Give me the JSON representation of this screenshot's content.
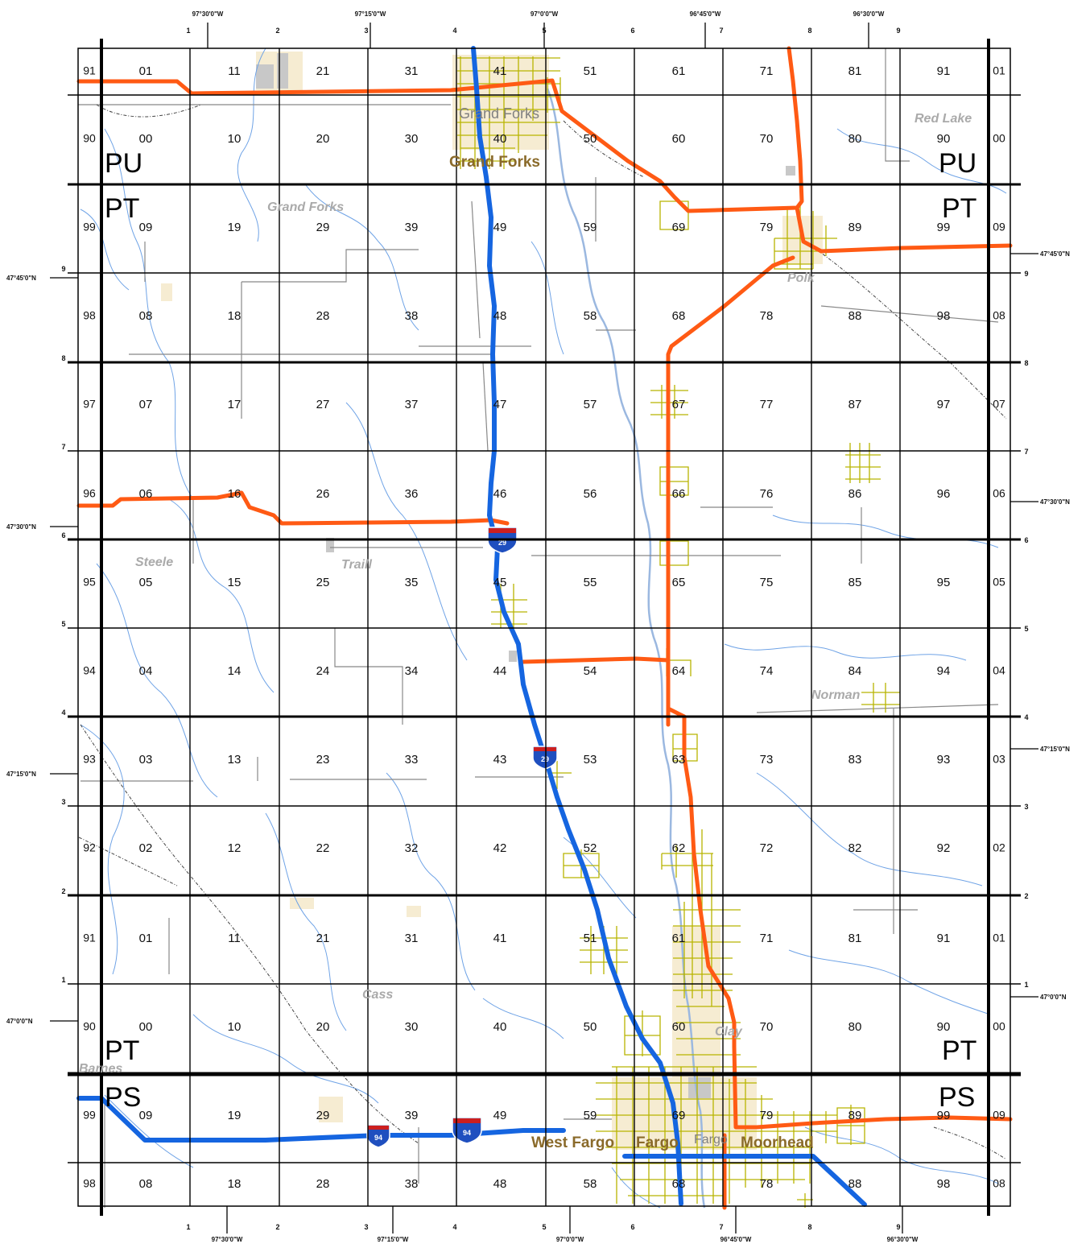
{
  "colors": {
    "grid": "#000000",
    "water": "#6fa3e6",
    "river": "#9bb8e0",
    "interstate": "#1565e0",
    "highway": "#ff5a14",
    "road": "#808080",
    "railroad": "#444444",
    "urban_grid": "#b8b400",
    "urban_fill": "#f6ecd2"
  },
  "top_coords": [
    {
      "label": "97°30'0\"W"
    },
    {
      "label": "97°15'0\"W"
    },
    {
      "label": "97°0'0\"W"
    },
    {
      "label": "96°45'0\"W"
    },
    {
      "label": "96°30'0\"W"
    }
  ],
  "bottom_coords": [
    {
      "label": "97°30'0\"W"
    },
    {
      "label": "97°15'0\"W"
    },
    {
      "label": "97°0'0\"W"
    },
    {
      "label": "96°45'0\"W"
    },
    {
      "label": "96°30'0\"W"
    }
  ],
  "left_coords": [
    {
      "label": "47°45'0\"N"
    },
    {
      "label": "47°30'0\"N"
    },
    {
      "label": "47°15'0\"N"
    },
    {
      "label": "47°0'0\"N"
    }
  ],
  "right_coords": [
    {
      "label": "47°45'0\"N"
    },
    {
      "label": "47°30'0\"N"
    },
    {
      "label": "47°15'0\"N"
    },
    {
      "label": "47°0'0\"N"
    }
  ],
  "top_index": [
    "1",
    "2",
    "3",
    "4",
    "5",
    "6",
    "7",
    "8",
    "9"
  ],
  "bottom_index": [
    "1",
    "2",
    "3",
    "4",
    "5",
    "6",
    "7",
    "8",
    "9"
  ],
  "left_index": [
    "9",
    "8",
    "7",
    "6",
    "5",
    "4",
    "3",
    "2",
    "1"
  ],
  "right_index": [
    "9",
    "8",
    "7",
    "6",
    "5",
    "4",
    "3",
    "2",
    "1"
  ],
  "grid_rows": [
    {
      "left": "91",
      "cells": [
        "01",
        "11",
        "21",
        "31",
        "41",
        "51",
        "61",
        "71",
        "81",
        "91"
      ],
      "right": "01"
    },
    {
      "left": "90",
      "cells": [
        "00",
        "10",
        "20",
        "30",
        "40",
        "50",
        "60",
        "70",
        "80",
        "90"
      ],
      "right": "00"
    },
    {
      "left": "99",
      "cells": [
        "09",
        "19",
        "29",
        "39",
        "49",
        "59",
        "69",
        "79",
        "89",
        "99"
      ],
      "right": "09"
    },
    {
      "left": "98",
      "cells": [
        "08",
        "18",
        "28",
        "38",
        "48",
        "58",
        "68",
        "78",
        "88",
        "98"
      ],
      "right": "08"
    },
    {
      "left": "97",
      "cells": [
        "07",
        "17",
        "27",
        "37",
        "47",
        "57",
        "67",
        "77",
        "87",
        "97"
      ],
      "right": "07"
    },
    {
      "left": "96",
      "cells": [
        "06",
        "16",
        "26",
        "36",
        "46",
        "56",
        "66",
        "76",
        "86",
        "96"
      ],
      "right": "06"
    },
    {
      "left": "95",
      "cells": [
        "05",
        "15",
        "25",
        "35",
        "45",
        "55",
        "65",
        "75",
        "85",
        "95"
      ],
      "right": "05"
    },
    {
      "left": "94",
      "cells": [
        "04",
        "14",
        "24",
        "34",
        "44",
        "54",
        "64",
        "74",
        "84",
        "94"
      ],
      "right": "04"
    },
    {
      "left": "93",
      "cells": [
        "03",
        "13",
        "23",
        "33",
        "43",
        "53",
        "63",
        "73",
        "83",
        "93"
      ],
      "right": "03"
    },
    {
      "left": "92",
      "cells": [
        "02",
        "12",
        "22",
        "32",
        "42",
        "52",
        "62",
        "72",
        "82",
        "92"
      ],
      "right": "02"
    },
    {
      "left": "91",
      "cells": [
        "01",
        "11",
        "21",
        "31",
        "41",
        "51",
        "61",
        "71",
        "81",
        "91"
      ],
      "right": "01"
    },
    {
      "left": "90",
      "cells": [
        "00",
        "10",
        "20",
        "30",
        "40",
        "50",
        "60",
        "70",
        "80",
        "90"
      ],
      "right": "00"
    },
    {
      "left": "99",
      "cells": [
        "09",
        "19",
        "29",
        "39",
        "49",
        "59",
        "69",
        "79",
        "89",
        "99"
      ],
      "right": "09"
    },
    {
      "left": "98",
      "cells": [
        "08",
        "18",
        "28",
        "38",
        "48",
        "58",
        "68",
        "78",
        "88",
        "98"
      ],
      "right": "08"
    }
  ],
  "zones": [
    {
      "label": "PU"
    },
    {
      "label": "PU"
    },
    {
      "label": "PT"
    },
    {
      "label": "PT"
    },
    {
      "label": "PT"
    },
    {
      "label": "PT"
    },
    {
      "label": "PS"
    },
    {
      "label": "PS"
    }
  ],
  "counties": [
    "Grand Forks",
    "Red Lake",
    "Polk",
    "Steele",
    "Traill",
    "Norman",
    "Cass",
    "Clay",
    "Barnes"
  ],
  "cities_grey": [
    "Grand Forks",
    "Fargo"
  ],
  "cities": [
    "Grand Forks",
    "West Fargo",
    "Fargo",
    "Moorhead"
  ],
  "shields": [
    "29",
    "29",
    "94",
    "94"
  ]
}
